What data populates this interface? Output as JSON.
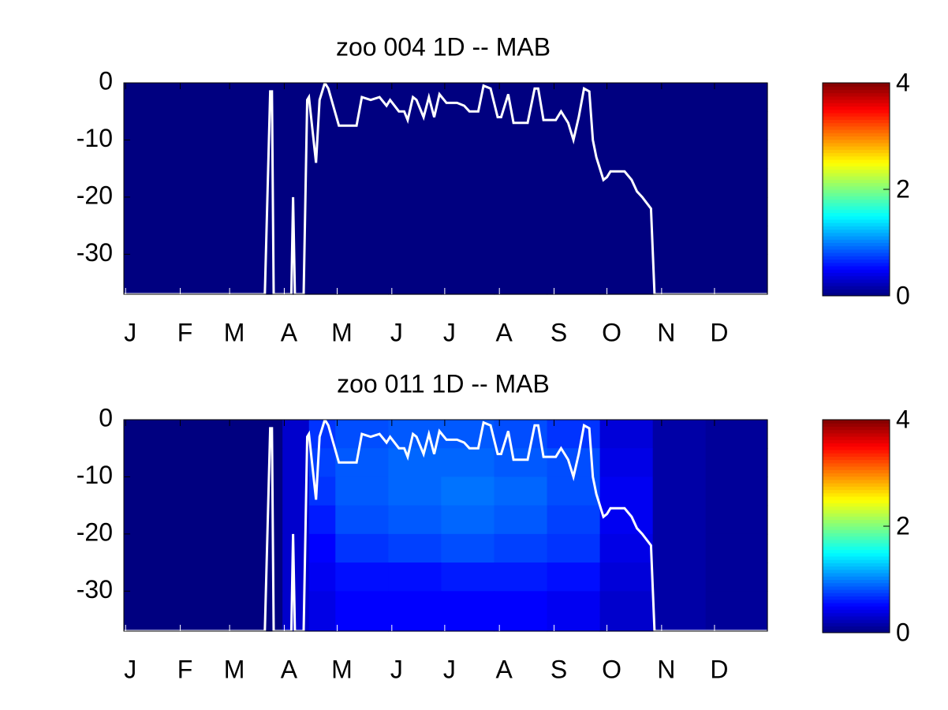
{
  "chart_data": [
    {
      "type": "heatmap",
      "title": "zoo  004 1D   -- MAB",
      "xlim": [
        0,
        365
      ],
      "ylim": [
        -37,
        0
      ],
      "xticks": [
        {
          "value": 1,
          "label": "J"
        },
        {
          "value": 32,
          "label": "F"
        },
        {
          "value": 60,
          "label": "M"
        },
        {
          "value": 91,
          "label": "A"
        },
        {
          "value": 121,
          "label": "M"
        },
        {
          "value": 152,
          "label": "J"
        },
        {
          "value": 182,
          "label": "J"
        },
        {
          "value": 213,
          "label": "A"
        },
        {
          "value": 244,
          "label": "S"
        },
        {
          "value": 274,
          "label": "O"
        },
        {
          "value": 305,
          "label": "N"
        },
        {
          "value": 335,
          "label": "D"
        }
      ],
      "yticks": [
        0,
        -10,
        -20,
        -30
      ],
      "colormap": "jet",
      "clim": [
        0,
        4
      ],
      "cticks": [
        0,
        2,
        4
      ],
      "x_edges": [
        0,
        30,
        60,
        90,
        105,
        120,
        150,
        180,
        210,
        240,
        270,
        300,
        330,
        365
      ],
      "y_edges": [
        0,
        -5,
        -10,
        -15,
        -20,
        -25,
        -30,
        -37
      ],
      "z": [
        [
          0,
          0,
          0,
          0,
          0,
          0,
          0,
          0,
          0,
          0,
          0,
          0,
          0
        ],
        [
          0,
          0,
          0,
          0,
          0,
          0,
          0,
          0,
          0,
          0,
          0,
          0,
          0
        ],
        [
          0,
          0,
          0,
          0,
          0,
          0,
          0,
          0,
          0,
          0,
          0,
          0,
          0
        ],
        [
          0,
          0,
          0,
          0,
          0,
          0,
          0,
          0,
          0,
          0,
          0,
          0,
          0
        ],
        [
          0,
          0,
          0,
          0,
          0,
          0,
          0,
          0,
          0,
          0,
          0,
          0,
          0
        ],
        [
          0,
          0,
          0,
          0,
          0,
          0,
          0,
          0,
          0,
          0,
          0,
          0,
          0
        ],
        [
          0,
          0,
          0,
          0,
          0,
          0,
          0,
          0,
          0,
          0,
          0,
          0,
          0
        ]
      ],
      "line": {
        "color": "#ffffff",
        "x": [
          0,
          80,
          83,
          84,
          85,
          95,
          96,
          97,
          102,
          104,
          105,
          109,
          111,
          114,
          116,
          122,
          132,
          135,
          140,
          145,
          149,
          151,
          156,
          159,
          161,
          164,
          166,
          170,
          173,
          176,
          179,
          183,
          189,
          193,
          196,
          201,
          204,
          208,
          212,
          214,
          218,
          221,
          229,
          233,
          235,
          238,
          245,
          248,
          252,
          255,
          258,
          261,
          264,
          266,
          268,
          272,
          274,
          276,
          284,
          288,
          291,
          294,
          299,
          301,
          365
        ],
        "y": [
          -37,
          -37,
          -1.5,
          -1.5,
          -37,
          -37,
          -20,
          -37,
          -37,
          -3,
          -2.5,
          -14,
          -3,
          0,
          -1,
          -7.5,
          -7.5,
          -2.5,
          -3,
          -2.5,
          -4,
          -3,
          -5,
          -5,
          -6.5,
          -2.5,
          -3,
          -6,
          -2.5,
          -6,
          -2,
          -3.5,
          -3.5,
          -4,
          -5,
          -5,
          -0.5,
          -1,
          -6,
          -6,
          -2,
          -7,
          -7,
          -1,
          -1,
          -6.5,
          -6.5,
          -5,
          -7,
          -10,
          -6,
          -1,
          -1.5,
          -10,
          -13,
          -17,
          -16.5,
          -15.5,
          -15.5,
          -17,
          -19,
          -20,
          -22,
          -37,
          -37
        ]
      }
    },
    {
      "type": "heatmap",
      "title": "zoo  011 1D   -- MAB",
      "xlim": [
        0,
        365
      ],
      "ylim": [
        -37,
        0
      ],
      "xticks": [
        {
          "value": 1,
          "label": "J"
        },
        {
          "value": 32,
          "label": "F"
        },
        {
          "value": 60,
          "label": "M"
        },
        {
          "value": 91,
          "label": "A"
        },
        {
          "value": 121,
          "label": "M"
        },
        {
          "value": 152,
          "label": "J"
        },
        {
          "value": 182,
          "label": "J"
        },
        {
          "value": 213,
          "label": "A"
        },
        {
          "value": 244,
          "label": "S"
        },
        {
          "value": 274,
          "label": "O"
        },
        {
          "value": 305,
          "label": "N"
        },
        {
          "value": 335,
          "label": "D"
        }
      ],
      "yticks": [
        0,
        -10,
        -20,
        -30
      ],
      "colormap": "jet",
      "clim": [
        0,
        4
      ],
      "cticks": [
        0,
        2,
        4
      ],
      "x_edges": [
        0,
        30,
        60,
        90,
        105,
        120,
        150,
        180,
        210,
        240,
        270,
        300,
        330,
        365
      ],
      "y_edges": [
        0,
        -5,
        -10,
        -15,
        -20,
        -25,
        -30,
        -37
      ],
      "z": [
        [
          0,
          0,
          0,
          0.3,
          0.7,
          0.8,
          0.85,
          0.85,
          0.8,
          0.7,
          0.35,
          0.15,
          0.1
        ],
        [
          0,
          0,
          0,
          0.3,
          0.75,
          0.85,
          0.9,
          0.9,
          0.85,
          0.8,
          0.4,
          0.15,
          0.1
        ],
        [
          0,
          0,
          0,
          0.3,
          0.7,
          0.85,
          0.9,
          0.95,
          0.9,
          0.8,
          0.45,
          0.15,
          0.1
        ],
        [
          0,
          0,
          0,
          0.3,
          0.6,
          0.8,
          0.85,
          0.9,
          0.85,
          0.75,
          0.45,
          0.15,
          0.1
        ],
        [
          0,
          0,
          0,
          0.3,
          0.5,
          0.7,
          0.75,
          0.8,
          0.75,
          0.7,
          0.4,
          0.15,
          0.1
        ],
        [
          0,
          0,
          0,
          0.3,
          0.45,
          0.55,
          0.55,
          0.6,
          0.6,
          0.55,
          0.35,
          0.15,
          0.1
        ],
        [
          0,
          0,
          0,
          0.3,
          0.4,
          0.5,
          0.5,
          0.5,
          0.5,
          0.45,
          0.3,
          0.15,
          0.1
        ]
      ],
      "line": {
        "color": "#ffffff",
        "x": [
          0,
          80,
          83,
          84,
          85,
          95,
          96,
          97,
          102,
          104,
          105,
          109,
          111,
          114,
          116,
          122,
          132,
          135,
          140,
          145,
          149,
          151,
          156,
          159,
          161,
          164,
          166,
          170,
          173,
          176,
          179,
          183,
          189,
          193,
          196,
          201,
          204,
          208,
          212,
          214,
          218,
          221,
          229,
          233,
          235,
          238,
          245,
          248,
          252,
          255,
          258,
          261,
          264,
          266,
          268,
          272,
          274,
          276,
          284,
          288,
          291,
          294,
          299,
          301,
          365
        ],
        "y": [
          -37,
          -37,
          -1.5,
          -1.5,
          -37,
          -37,
          -20,
          -37,
          -37,
          -3,
          -2.5,
          -14,
          -3,
          0,
          -1,
          -7.5,
          -7.5,
          -2.5,
          -3,
          -2.5,
          -4,
          -3,
          -5,
          -5,
          -6.5,
          -2.5,
          -3,
          -6,
          -2.5,
          -6,
          -2,
          -3.5,
          -3.5,
          -4,
          -5,
          -5,
          -0.5,
          -1,
          -6,
          -6,
          -2,
          -7,
          -7,
          -1,
          -1,
          -6.5,
          -6.5,
          -5,
          -7,
          -10,
          -6,
          -1,
          -1.5,
          -10,
          -13,
          -17,
          -16.5,
          -15.5,
          -15.5,
          -17,
          -19,
          -20,
          -22,
          -37,
          -37
        ]
      }
    }
  ]
}
